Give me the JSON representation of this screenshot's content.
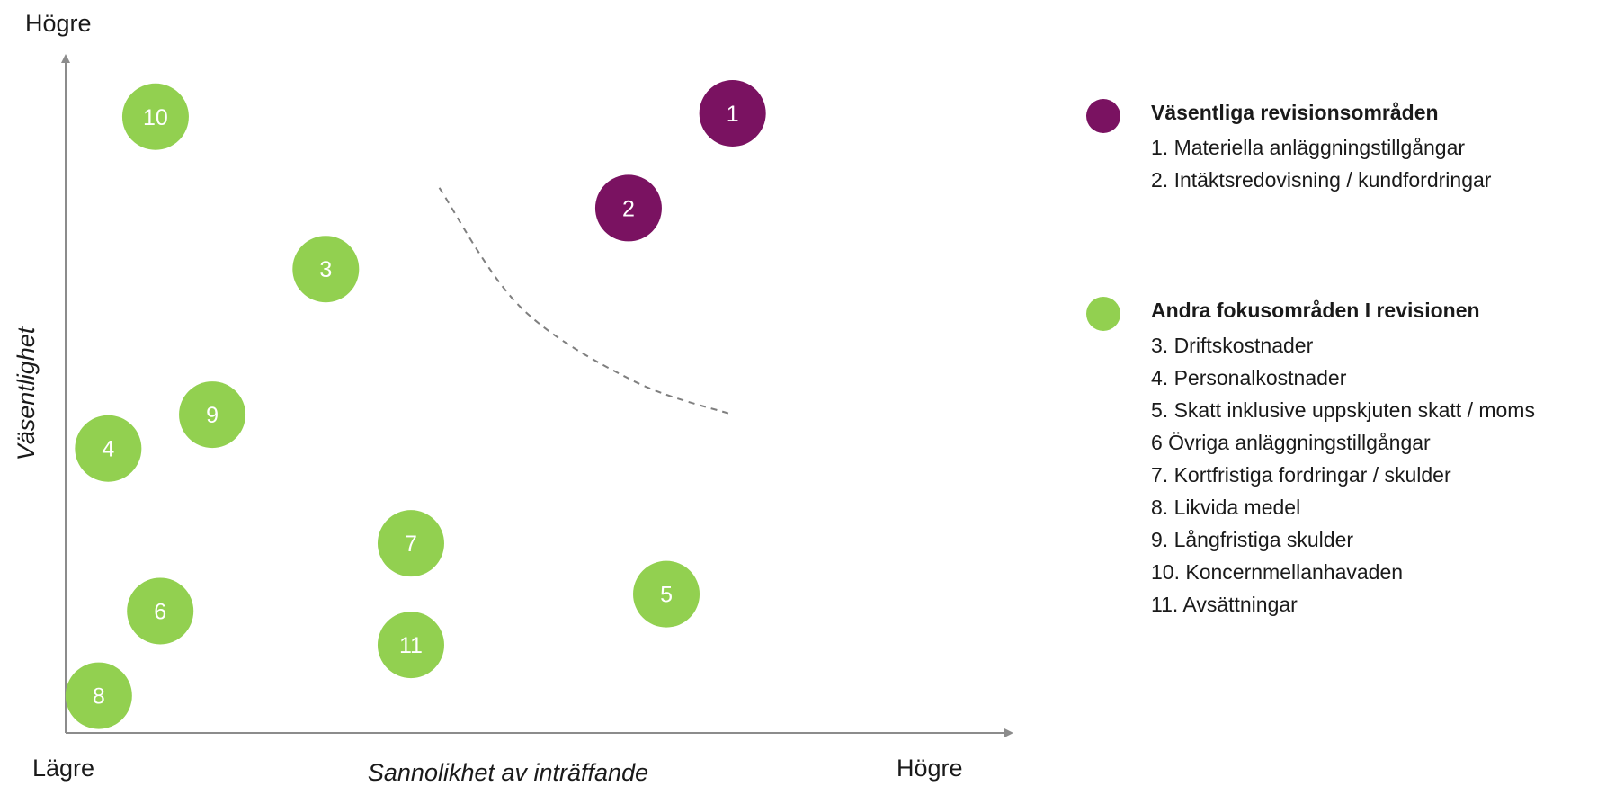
{
  "chart_data": {
    "type": "scatter",
    "title": "",
    "xlabel": "Sannolikhet av inträffande",
    "ylabel": "Väsentlighet",
    "x_low_label": "Lägre",
    "x_high_label": "Högre",
    "y_high_label": "Högre",
    "xlim": [
      0,
      100
    ],
    "ylim": [
      0,
      100
    ],
    "grid": false,
    "legend_position": "right",
    "series": [
      {
        "name": "Väsentliga revisionsområden",
        "color": "#7a1261",
        "points": [
          {
            "label": "1",
            "x": 70.5,
            "y": 91.5
          },
          {
            "label": "2",
            "x": 59.5,
            "y": 77.5
          }
        ]
      },
      {
        "name": "Andra fokusområden I revisionen",
        "color": "#92d050",
        "points": [
          {
            "label": "3",
            "x": 27.5,
            "y": 68.5
          },
          {
            "label": "4",
            "x": 4.5,
            "y": 42.0
          },
          {
            "label": "5",
            "x": 63.5,
            "y": 20.5
          },
          {
            "label": "6",
            "x": 10.0,
            "y": 18.0
          },
          {
            "label": "7",
            "x": 36.5,
            "y": 28.0
          },
          {
            "label": "8",
            "x": 3.5,
            "y": 5.5
          },
          {
            "label": "9",
            "x": 15.5,
            "y": 47.0
          },
          {
            "label": "10",
            "x": 9.5,
            "y": 91.0
          },
          {
            "label": "11",
            "x": 36.5,
            "y": 13.0
          }
        ]
      }
    ],
    "boundary_curve": [
      {
        "x": 39.5,
        "y": 80.5
      },
      {
        "x": 48.0,
        "y": 63.0
      },
      {
        "x": 60.0,
        "y": 52.0
      },
      {
        "x": 70.5,
        "y": 47.0
      }
    ]
  },
  "legend": {
    "groups": [
      {
        "title": "Väsentliga revisionsområden",
        "color": "#7a1261",
        "items": [
          "1. Materiella anläggningstillgångar",
          "2. Intäktsredovisning / kundfordringar"
        ]
      },
      {
        "title": "Andra fokusområden I revisionen",
        "color": "#92d050",
        "items": [
          "3. Driftskostnader",
          "4. Personalkostnader",
          "5. Skatt inklusive uppskjuten skatt / moms",
          "6 Övriga anläggningstillgångar",
          "7. Kortfristiga fordringar / skulder",
          "8. Likvida medel",
          "9. Långfristiga skulder",
          "10. Koncernmellanhavaden",
          "11. Avsättningar"
        ]
      }
    ]
  }
}
